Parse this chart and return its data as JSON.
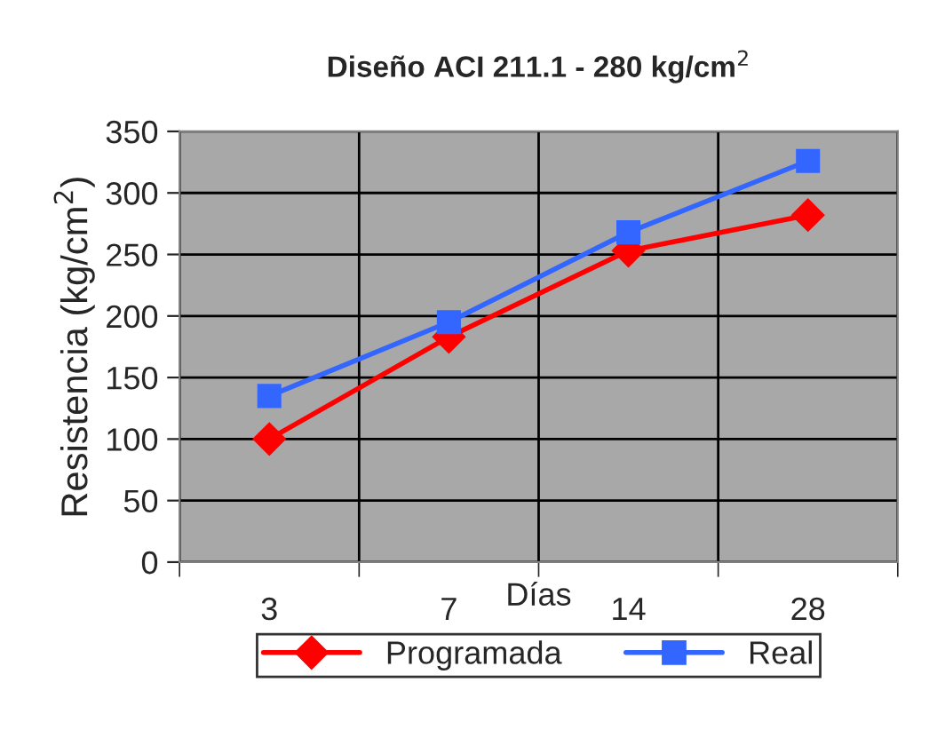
{
  "chart_data": {
    "type": "line",
    "title": "Diseño ACI 211.1 - 280 kg/cm$^{2}$",
    "xlabel": "Días",
    "ylabel": "Resistencia (kg/cm$^{2}$)",
    "categories": [
      "3",
      "7",
      "14",
      "28"
    ],
    "series": [
      {
        "name": "Programada",
        "color": "#ff0000",
        "marker": "diamond",
        "values": [
          100,
          183,
          253,
          282
        ]
      },
      {
        "name": "Real",
        "color": "#3366ff",
        "marker": "square",
        "values": [
          135,
          195,
          268,
          326
        ]
      }
    ],
    "ylim": [
      0,
      350
    ],
    "yticks": [
      0,
      50,
      100,
      150,
      200,
      250,
      300,
      350
    ],
    "grid": true,
    "legend": "bottom",
    "line_style": "solid"
  }
}
